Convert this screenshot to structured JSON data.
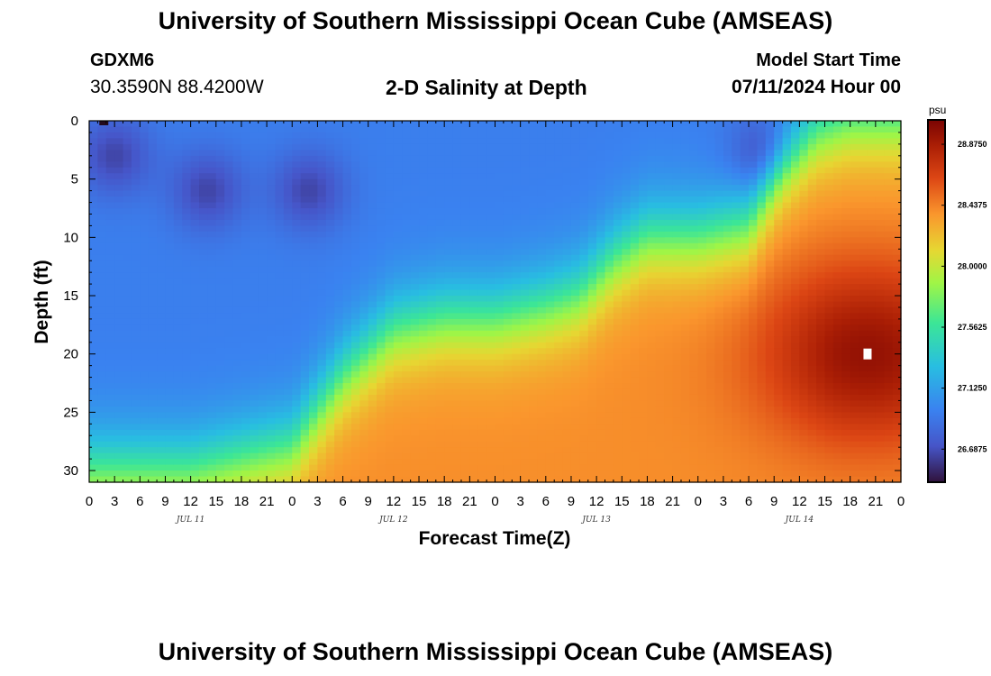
{
  "header": {
    "title": "University of Southern Mississippi Ocean Cube (AMSEAS)",
    "station": "GDXM6",
    "coords": "30.3590N  88.4200W",
    "plot_title": "2-D Salinity at Depth",
    "model_start_label": "Model Start Time",
    "model_start_value": "07/11/2024 Hour 00"
  },
  "footer": {
    "title": "University of Southern Mississippi Ocean Cube (AMSEAS)"
  },
  "chart_data": {
    "type": "heatmap",
    "xlabel": "Forecast Time(Z)",
    "ylabel": "Depth (ft)",
    "x_hours": [
      0,
      96
    ],
    "y_range": [
      0,
      31
    ],
    "x_tick_labels": [
      "0",
      "3",
      "6",
      "9",
      "12",
      "15",
      "18",
      "21",
      "0",
      "3",
      "6",
      "9",
      "12",
      "15",
      "18",
      "21",
      "0",
      "3",
      "6",
      "9",
      "12",
      "15",
      "18",
      "21",
      "0",
      "3",
      "6",
      "9",
      "12",
      "15",
      "18",
      "21",
      "0"
    ],
    "y_tick_labels": [
      "0",
      "5",
      "10",
      "15",
      "20",
      "25",
      "30"
    ],
    "day_labels": [
      "JUL 11",
      "JUL 12",
      "JUL 13",
      "JUL 14"
    ],
    "colorbar": {
      "unit": "psu",
      "range": [
        26.45,
        29.05
      ],
      "tick_labels": [
        "28.8750",
        "28.4375",
        "28.0000",
        "27.5625",
        "27.1250",
        "26.6875"
      ]
    },
    "interface_depth_ft": [
      [
        0,
        30
      ],
      [
        12,
        30
      ],
      [
        24,
        28
      ],
      [
        30,
        22
      ],
      [
        36,
        18
      ],
      [
        42,
        17
      ],
      [
        48,
        17
      ],
      [
        54,
        16
      ],
      [
        58,
        15
      ],
      [
        62,
        12
      ],
      [
        66,
        10
      ],
      [
        72,
        10
      ],
      [
        78,
        9
      ],
      [
        82,
        4
      ],
      [
        86,
        1
      ],
      [
        90,
        0
      ],
      [
        96,
        0
      ]
    ],
    "fresh_spots": [
      {
        "x": 3,
        "y": 3,
        "value": 26.5
      },
      {
        "x": 14,
        "y": 6,
        "value": 26.75
      },
      {
        "x": 26,
        "y": 6,
        "value": 26.8
      },
      {
        "x": 80,
        "y": 3,
        "value": 26.85
      }
    ],
    "salty_spot": {
      "x": 92,
      "y": 20,
      "value": 29.0
    }
  }
}
